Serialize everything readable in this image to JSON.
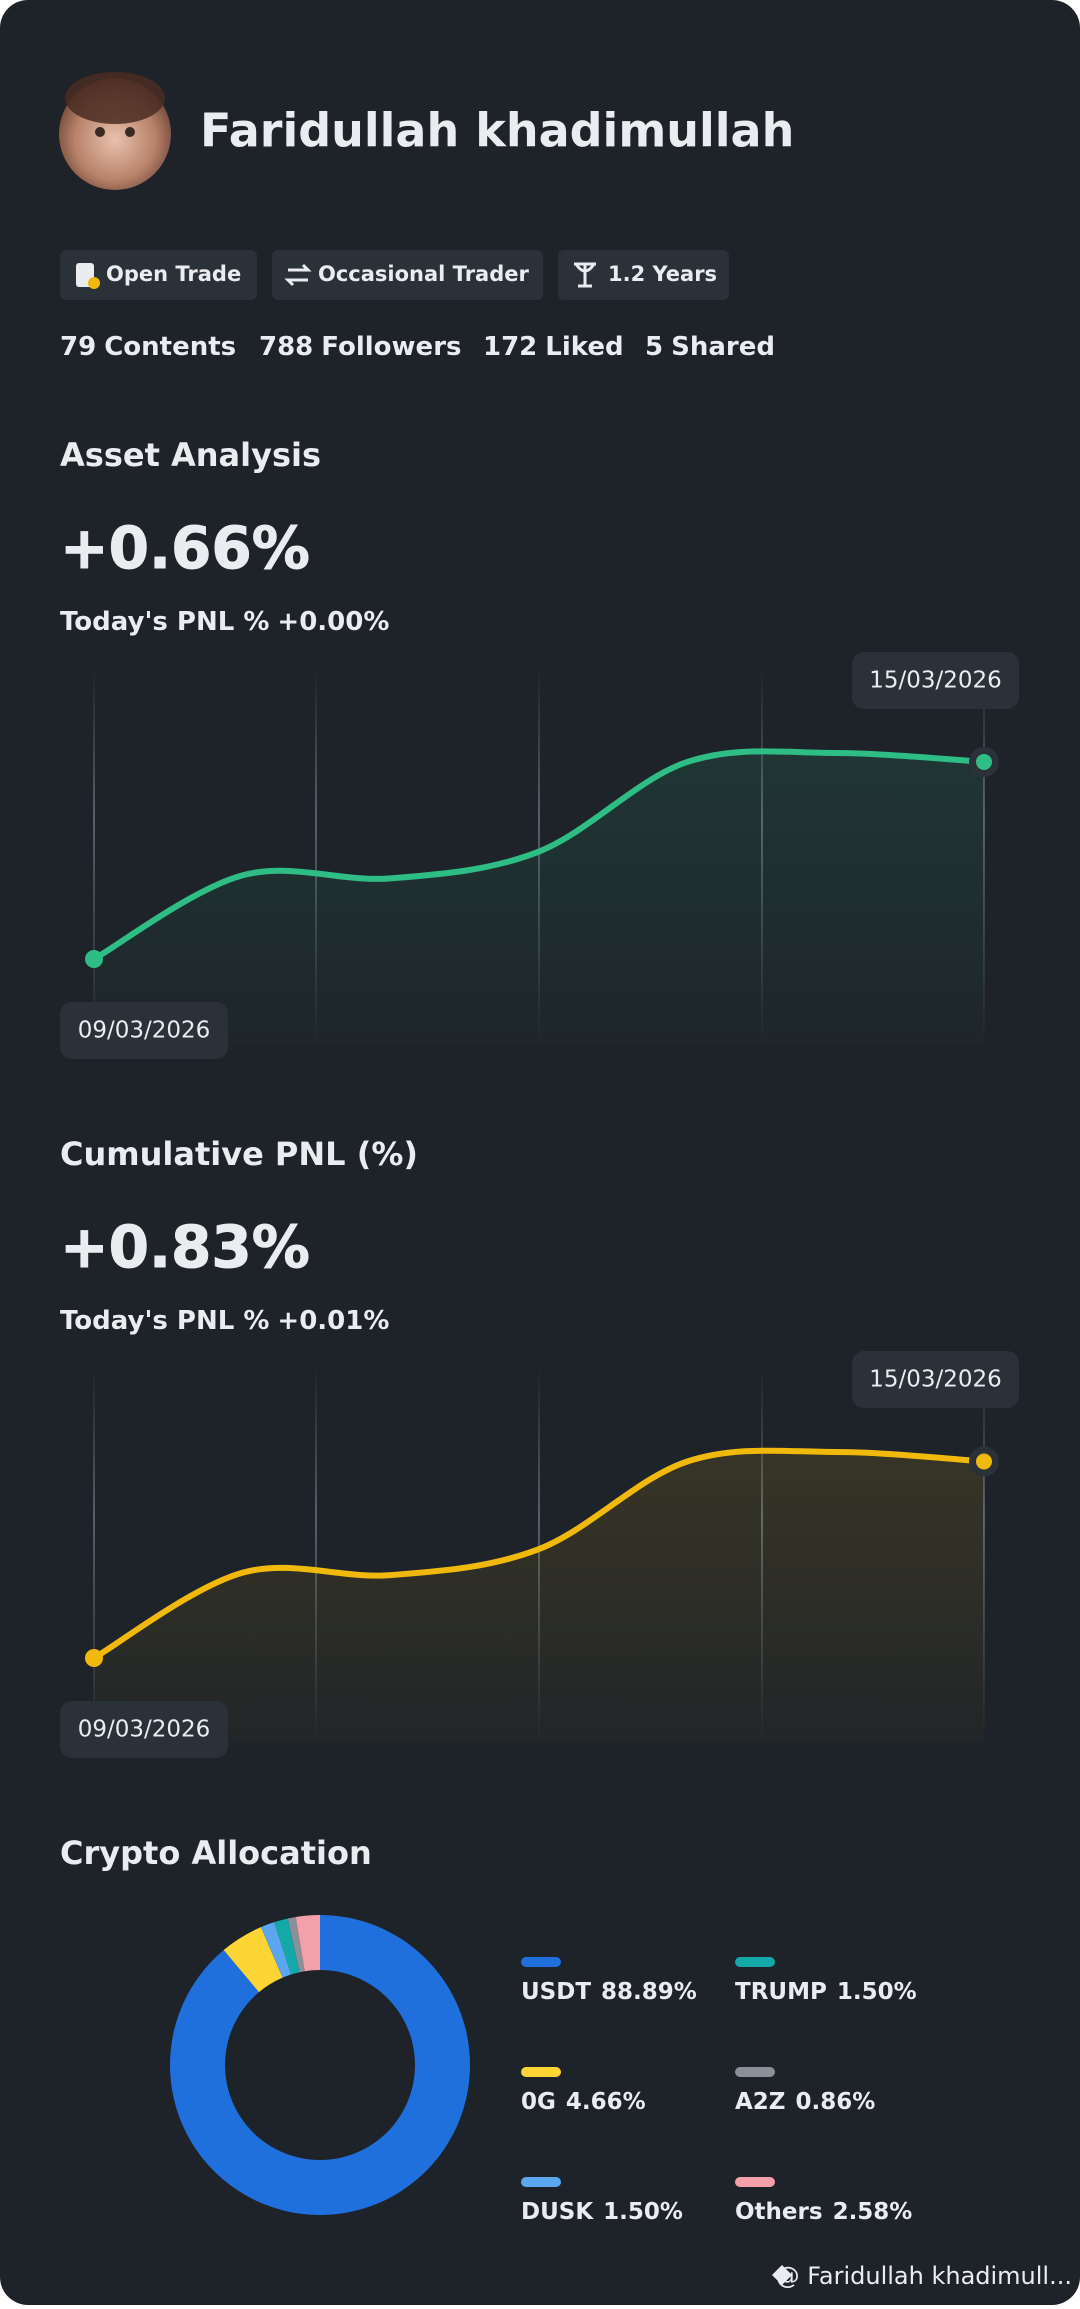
{
  "profile": {
    "name": "Faridullah khadimullah",
    "tags": [
      "Open Trade",
      "Occasional Trader",
      "1.2 Years"
    ],
    "stats": [
      {
        "count": 79,
        "label": "Contents"
      },
      {
        "count": 788,
        "label": "Followers"
      },
      {
        "count": 172,
        "label": "Liked"
      },
      {
        "count": 5,
        "label": "Shared"
      }
    ]
  },
  "charts": [
    {
      "type": "line",
      "title": "Asset Analysis",
      "headline": "+0.66%",
      "today_label": "Today's PNL %",
      "today_value": "+0.00%",
      "dates": [
        "09/03/2026",
        null,
        null,
        null,
        null,
        null,
        "15/03/2026"
      ],
      "values": [
        0,
        0.28,
        0.27,
        0.36,
        0.66,
        0.69,
        0.66
      ],
      "color": "#2ebd85"
    },
    {
      "type": "line",
      "title": "Cumulative PNL (%)",
      "headline": "+0.83%",
      "today_label": "Today's PNL %",
      "today_value": "+0.01%",
      "dates": [
        "09/03/2026",
        null,
        null,
        null,
        null,
        null,
        "15/03/2026"
      ],
      "values": [
        0,
        0.36,
        0.35,
        0.46,
        0.83,
        0.87,
        0.83
      ],
      "color": "#f0b90b"
    },
    {
      "type": "donut",
      "title": "Crypto Allocation",
      "categories": [
        "USDT",
        "0G",
        "DUSK",
        "TRUMP",
        "A2Z",
        "Others"
      ],
      "values": [
        88.89,
        4.66,
        1.5,
        1.5,
        0.86,
        2.58
      ],
      "value_labels": [
        "88.89%",
        "4.66%",
        "1.50%",
        "1.50%",
        "0.86%",
        "2.58%"
      ],
      "colors": [
        "#1f6fdc",
        "#fcd535",
        "#5aa7f0",
        "#14a8a8",
        "#8a8f98",
        "#f4a0aa"
      ]
    }
  ],
  "footer": "@ Faridullah khadimull..."
}
